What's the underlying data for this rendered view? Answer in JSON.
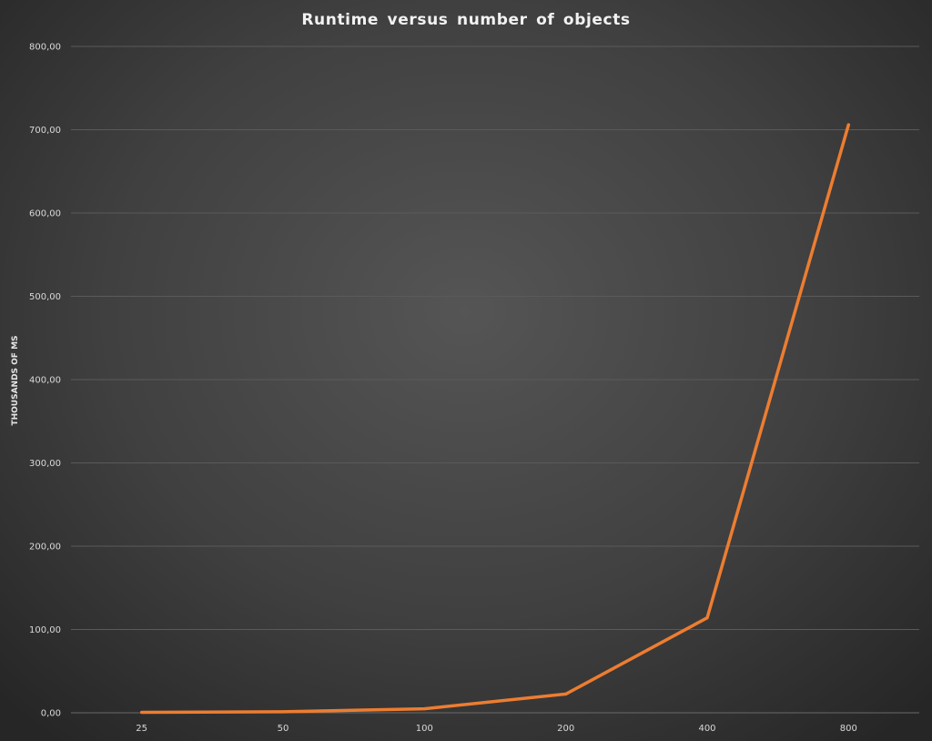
{
  "chart_data": {
    "type": "line",
    "title": "Runtime versus number of objects",
    "xlabel": "",
    "ylabel": "THOUSANDS OF MS",
    "categories": [
      "25",
      "50",
      "100",
      "200",
      "400",
      "800"
    ],
    "series": [
      {
        "values": [
          0.5,
          1.2,
          4.8,
          22.5,
          114,
          706
        ]
      }
    ],
    "ylim": [
      0,
      800
    ],
    "yticks": [
      "0,00",
      "100,00",
      "200,00",
      "300,00",
      "400,00",
      "500,00",
      "600,00",
      "700,00",
      "800,00"
    ],
    "grid": true,
    "legend": "none",
    "colors": {
      "line": "#ed7d31",
      "grid": "#5a5a5a",
      "text": "#d9d9d9"
    }
  }
}
